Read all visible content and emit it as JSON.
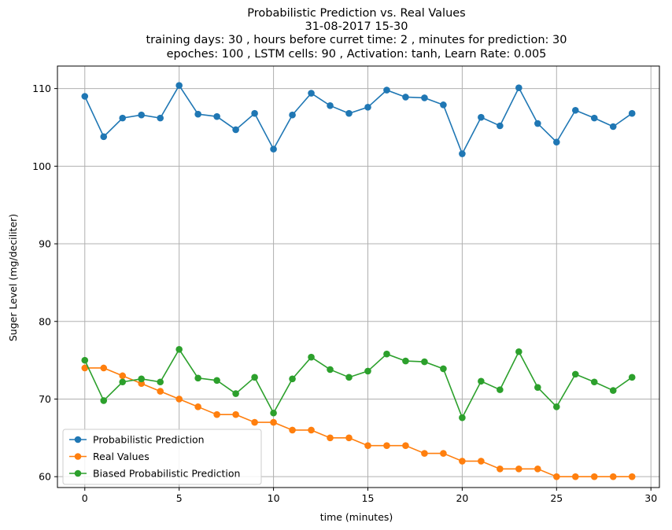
{
  "chart_data": {
    "type": "line",
    "title_lines": [
      "Probabilistic Prediction vs. Real Values",
      "31-08-2017 15-30",
      "training days: 30 , hours before curret time: 2 , minutes for prediction: 30",
      "epoches: 100 , LSTM cells: 90 , Activation: tanh, Learn Rate: 0.005"
    ],
    "xlabel": "time (minutes)",
    "ylabel": "Suger Level (mg/deciliter)",
    "xlim": [
      -1.45,
      30.45
    ],
    "ylim": [
      58.6,
      112.9
    ],
    "x_ticks": [
      0,
      5,
      10,
      15,
      20,
      25,
      30
    ],
    "y_ticks": [
      60,
      70,
      80,
      90,
      100,
      110
    ],
    "grid": true,
    "legend_position": "lower-left",
    "x": [
      0,
      1,
      2,
      3,
      4,
      5,
      6,
      7,
      8,
      9,
      10,
      11,
      12,
      13,
      14,
      15,
      16,
      17,
      18,
      19,
      20,
      21,
      22,
      23,
      24,
      25,
      26,
      27,
      28,
      29
    ],
    "series": [
      {
        "name": "Probabilistic Prediction",
        "color": "#1f77b4",
        "values": [
          109.0,
          103.8,
          106.2,
          106.6,
          106.2,
          110.4,
          106.7,
          106.4,
          104.7,
          106.8,
          102.2,
          106.6,
          109.4,
          107.8,
          106.8,
          107.6,
          109.8,
          108.9,
          108.8,
          107.9,
          101.6,
          106.3,
          105.2,
          110.1,
          105.5,
          103.1,
          107.2,
          106.2,
          105.1,
          106.8
        ]
      },
      {
        "name": "Real Values",
        "color": "#ff7f0e",
        "values": [
          74,
          74,
          73,
          72,
          71,
          70,
          69,
          68,
          68,
          67,
          67,
          66,
          66,
          65,
          65,
          64,
          64,
          64,
          63,
          63,
          62,
          62,
          61,
          61,
          61,
          60,
          60,
          60,
          60,
          60
        ]
      },
      {
        "name": "Biased Probabilistic Prediction",
        "color": "#2ca02c",
        "values": [
          75.0,
          69.8,
          72.2,
          72.6,
          72.2,
          76.4,
          72.7,
          72.4,
          70.7,
          72.8,
          68.2,
          72.6,
          75.4,
          73.8,
          72.8,
          73.6,
          75.8,
          74.9,
          74.8,
          73.9,
          67.6,
          72.3,
          71.2,
          76.1,
          71.5,
          69.0,
          73.2,
          72.2,
          71.1,
          72.8
        ]
      }
    ]
  }
}
